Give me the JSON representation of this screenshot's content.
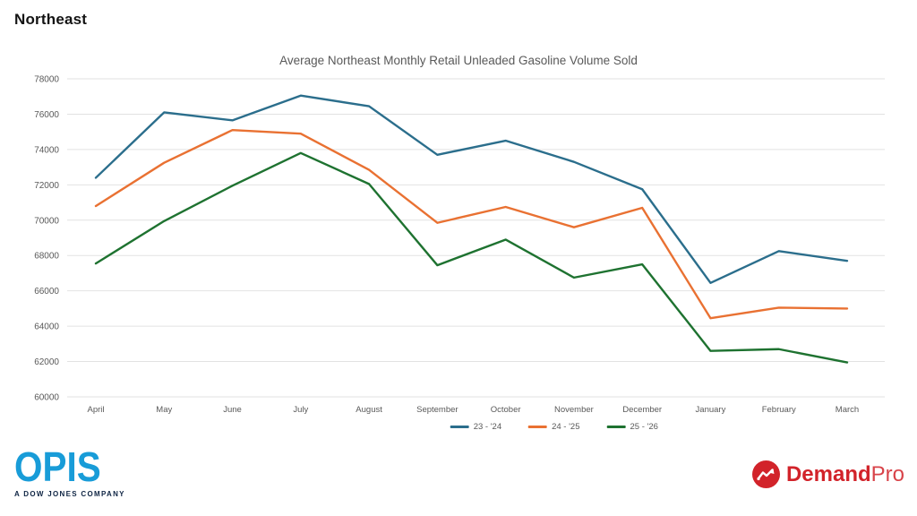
{
  "page": {
    "title": "Northeast"
  },
  "chart_data": {
    "type": "line",
    "title": "Average Northeast Monthly Retail Unleaded Gasoline Volume Sold",
    "categories": [
      "April",
      "May",
      "June",
      "July",
      "August",
      "September",
      "October",
      "November",
      "December",
      "January",
      "February",
      "March"
    ],
    "series": [
      {
        "name": "23 - '24",
        "color": "#2B6E8C",
        "values": [
          72400,
          76100,
          75650,
          77050,
          76450,
          73700,
          74500,
          73300,
          71750,
          66450,
          68250,
          67700
        ]
      },
      {
        "name": "24 - '25",
        "color": "#E97132",
        "values": [
          70800,
          73250,
          75100,
          74900,
          72850,
          69850,
          70750,
          69600,
          70700,
          64450,
          65050,
          65000
        ]
      },
      {
        "name": "25 - '26",
        "color": "#1E7230",
        "values": [
          67550,
          69950,
          71950,
          73800,
          72050,
          67450,
          68900,
          66750,
          67500,
          62600,
          62700,
          61950
        ]
      }
    ],
    "ylim": [
      60000,
      78000
    ],
    "ytick_step": 2000,
    "ytick_labels": [
      "60000",
      "62000",
      "64000",
      "66000",
      "68000",
      "70000",
      "72000",
      "74000",
      "76000",
      "78000"
    ],
    "grid": "horizontal",
    "grid_color": "#E2E2E2",
    "axis_label_color": "#595959",
    "legend_position": "bottom-center"
  },
  "footer": {
    "opis": {
      "wordmark": "OPIS",
      "tagline": "A DOW JONES COMPANY",
      "brand_color": "#189CD8",
      "tagline_color": "#0E2443"
    },
    "demandpro": {
      "icon": "line-chart-circle-icon",
      "wordmark_bold": "Demand",
      "wordmark_light": "Pro",
      "brand_color": "#D2232A"
    }
  }
}
